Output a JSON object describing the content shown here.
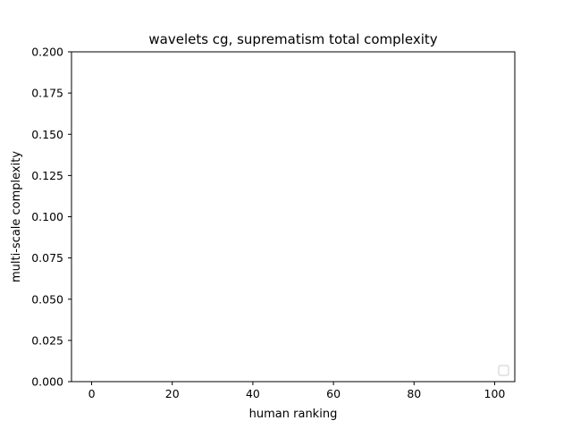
{
  "chart_data": {
    "type": "scatter",
    "title": "wavelets cg, suprematism total complexity",
    "xlabel": "human ranking",
    "ylabel": "multi-scale complexity",
    "xlim": [
      -5,
      105
    ],
    "ylim": [
      0,
      0.2
    ],
    "x_ticks": [
      0,
      20,
      40,
      60,
      80,
      100
    ],
    "y_ticks": [
      0.0,
      0.025,
      0.05,
      0.075,
      0.1,
      0.125,
      0.15,
      0.175,
      0.2
    ],
    "x_tick_labels": [
      "0",
      "20",
      "40",
      "60",
      "80",
      "100"
    ],
    "y_tick_labels": [
      "0.000",
      "0.025",
      "0.050",
      "0.075",
      "0.100",
      "0.125",
      "0.150",
      "0.175",
      "0.200"
    ],
    "series": [],
    "grid": false,
    "legend": {
      "placement": "lower-right",
      "entries": []
    }
  }
}
